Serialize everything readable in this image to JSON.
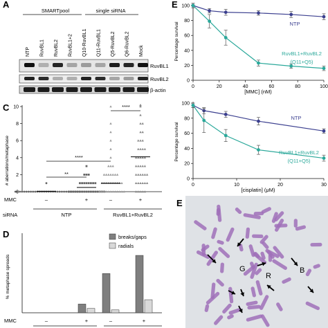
{
  "panel_a": {
    "letter": "A",
    "group_left": "SMARTpool",
    "group_right": "single siRNA",
    "lanes": [
      "NTP",
      "RuvBL1",
      "RuvBL2",
      "RuvBL1+2",
      "Q10-RuvBL1",
      "Q11-RuvBL1",
      "Q5-RuvBL2",
      "Q6-RuvBL2",
      "Mock"
    ],
    "blot_labels": [
      "RuvBL1",
      "RuvBL2",
      "β-actin"
    ]
  },
  "panel_c": {
    "letter": "C",
    "ylabel": "# aberrations/metaphase",
    "yticks": [
      "0",
      "2",
      "4",
      "6",
      "8",
      "10"
    ],
    "row_mmc_label": "MMC",
    "row_sirna_label": "siRNA",
    "mmc_values": [
      "–",
      "+",
      "–",
      "+"
    ],
    "sirna_groups": [
      "NTP",
      "RuvBL1+RuvBL2"
    ],
    "sig_short": "**",
    "sig_long": "****"
  },
  "panel_d": {
    "letter": "D",
    "ylabel": "% metaphase spreads",
    "legend": [
      "breaks/gaps",
      "radials"
    ],
    "row_mmc_label": "MMC",
    "mmc_values": [
      "–",
      "+",
      "–",
      "+"
    ],
    "colors": {
      "breaks": "#7f7f7f",
      "radials": "#d9d9d9"
    }
  },
  "panel_e_top": {
    "letter": "E",
    "ylabel": "Percentage survival",
    "xlabel": "[MMC] (nM)",
    "xticks": [
      "0",
      "20",
      "40",
      "60",
      "80",
      "100"
    ],
    "yticks": [
      "0",
      "20",
      "40",
      "60",
      "80",
      "100"
    ],
    "series_ntp_label": "NTP",
    "series_kd_label_1": "RuvBL1+RuvBL2",
    "series_kd_label_2": "(Q11+Q5)"
  },
  "panel_e_bottom": {
    "ylabel": "Percentage survival",
    "xlabel": "[cisplatin] (μM)",
    "xticks": [
      "0",
      "10",
      "20",
      "30"
    ],
    "yticks": [
      "0",
      "20",
      "40",
      "60",
      "80",
      "100"
    ],
    "series_ntp_label": "NTP",
    "series_kd_label_1": "RuvBL1+RuvBL2",
    "series_kd_label_2": "(Q11+Q5)"
  },
  "panel_e_image": {
    "letter": "E",
    "annotations": [
      "G",
      "B",
      "R"
    ]
  },
  "colors": {
    "ntp": "#3b3f8f",
    "kd": "#2aa89a",
    "chromosome": "#a070b8"
  },
  "chart_data": [
    {
      "type": "bar",
      "title": "",
      "ylabel": "% metaphase spreads",
      "categories": [
        "NTP –MMC",
        "NTP +MMC",
        "RuvBL1+RuvBL2 –MMC",
        "RuvBL1+RuvBL2 +MMC"
      ],
      "series": [
        {
          "name": "breaks/gaps",
          "values": [
            0,
            12,
            54,
            79
          ]
        },
        {
          "name": "radials",
          "values": [
            0,
            6,
            4,
            18
          ]
        }
      ],
      "ylim": [
        0,
        100
      ],
      "legend": "top-left"
    },
    {
      "type": "line",
      "xlabel": "[MMC] (nM)",
      "ylabel": "Percentage survival",
      "xlim": [
        0,
        100
      ],
      "ylim": [
        0,
        100
      ],
      "series": [
        {
          "name": "NTP",
          "x": [
            0,
            12.5,
            25,
            50,
            75,
            100
          ],
          "y": [
            100,
            93,
            91,
            90,
            88,
            85
          ],
          "err": [
            3,
            3,
            4,
            3,
            4,
            4
          ]
        },
        {
          "name": "RuvBL1+RuvBL2",
          "x": [
            0,
            12.5,
            25,
            50,
            75,
            100
          ],
          "y": [
            100,
            79,
            57,
            23,
            19,
            16
          ],
          "err": [
            3,
            9,
            10,
            4,
            3,
            3
          ]
        }
      ]
    },
    {
      "type": "line",
      "xlabel": "[cisplatin] (μM)",
      "ylabel": "Percentage survival",
      "xlim": [
        0,
        30
      ],
      "ylim": [
        0,
        100
      ],
      "series": [
        {
          "name": "NTP",
          "x": [
            0,
            2.5,
            7.5,
            15,
            30
          ],
          "y": [
            97,
            90,
            85,
            76,
            63
          ],
          "err": [
            3,
            4,
            4,
            5,
            3
          ]
        },
        {
          "name": "RuvBL1+RuvBL2",
          "x": [
            0,
            2.5,
            7.5,
            15,
            30
          ],
          "y": [
            97,
            77,
            57,
            38,
            27
          ],
          "err": [
            3,
            16,
            8,
            6,
            4
          ]
        }
      ]
    },
    {
      "type": "scatter",
      "ylabel": "# aberrations/metaphase",
      "categories": [
        "NTP –MMC",
        "NTP +MMC",
        "RuvBL1+RuvBL2 –MMC",
        "RuvBL1+RuvBL2 +MMC"
      ],
      "means": [
        0.05,
        0.5,
        1.0,
        4.1
      ],
      "ylim": [
        0,
        10
      ]
    }
  ]
}
